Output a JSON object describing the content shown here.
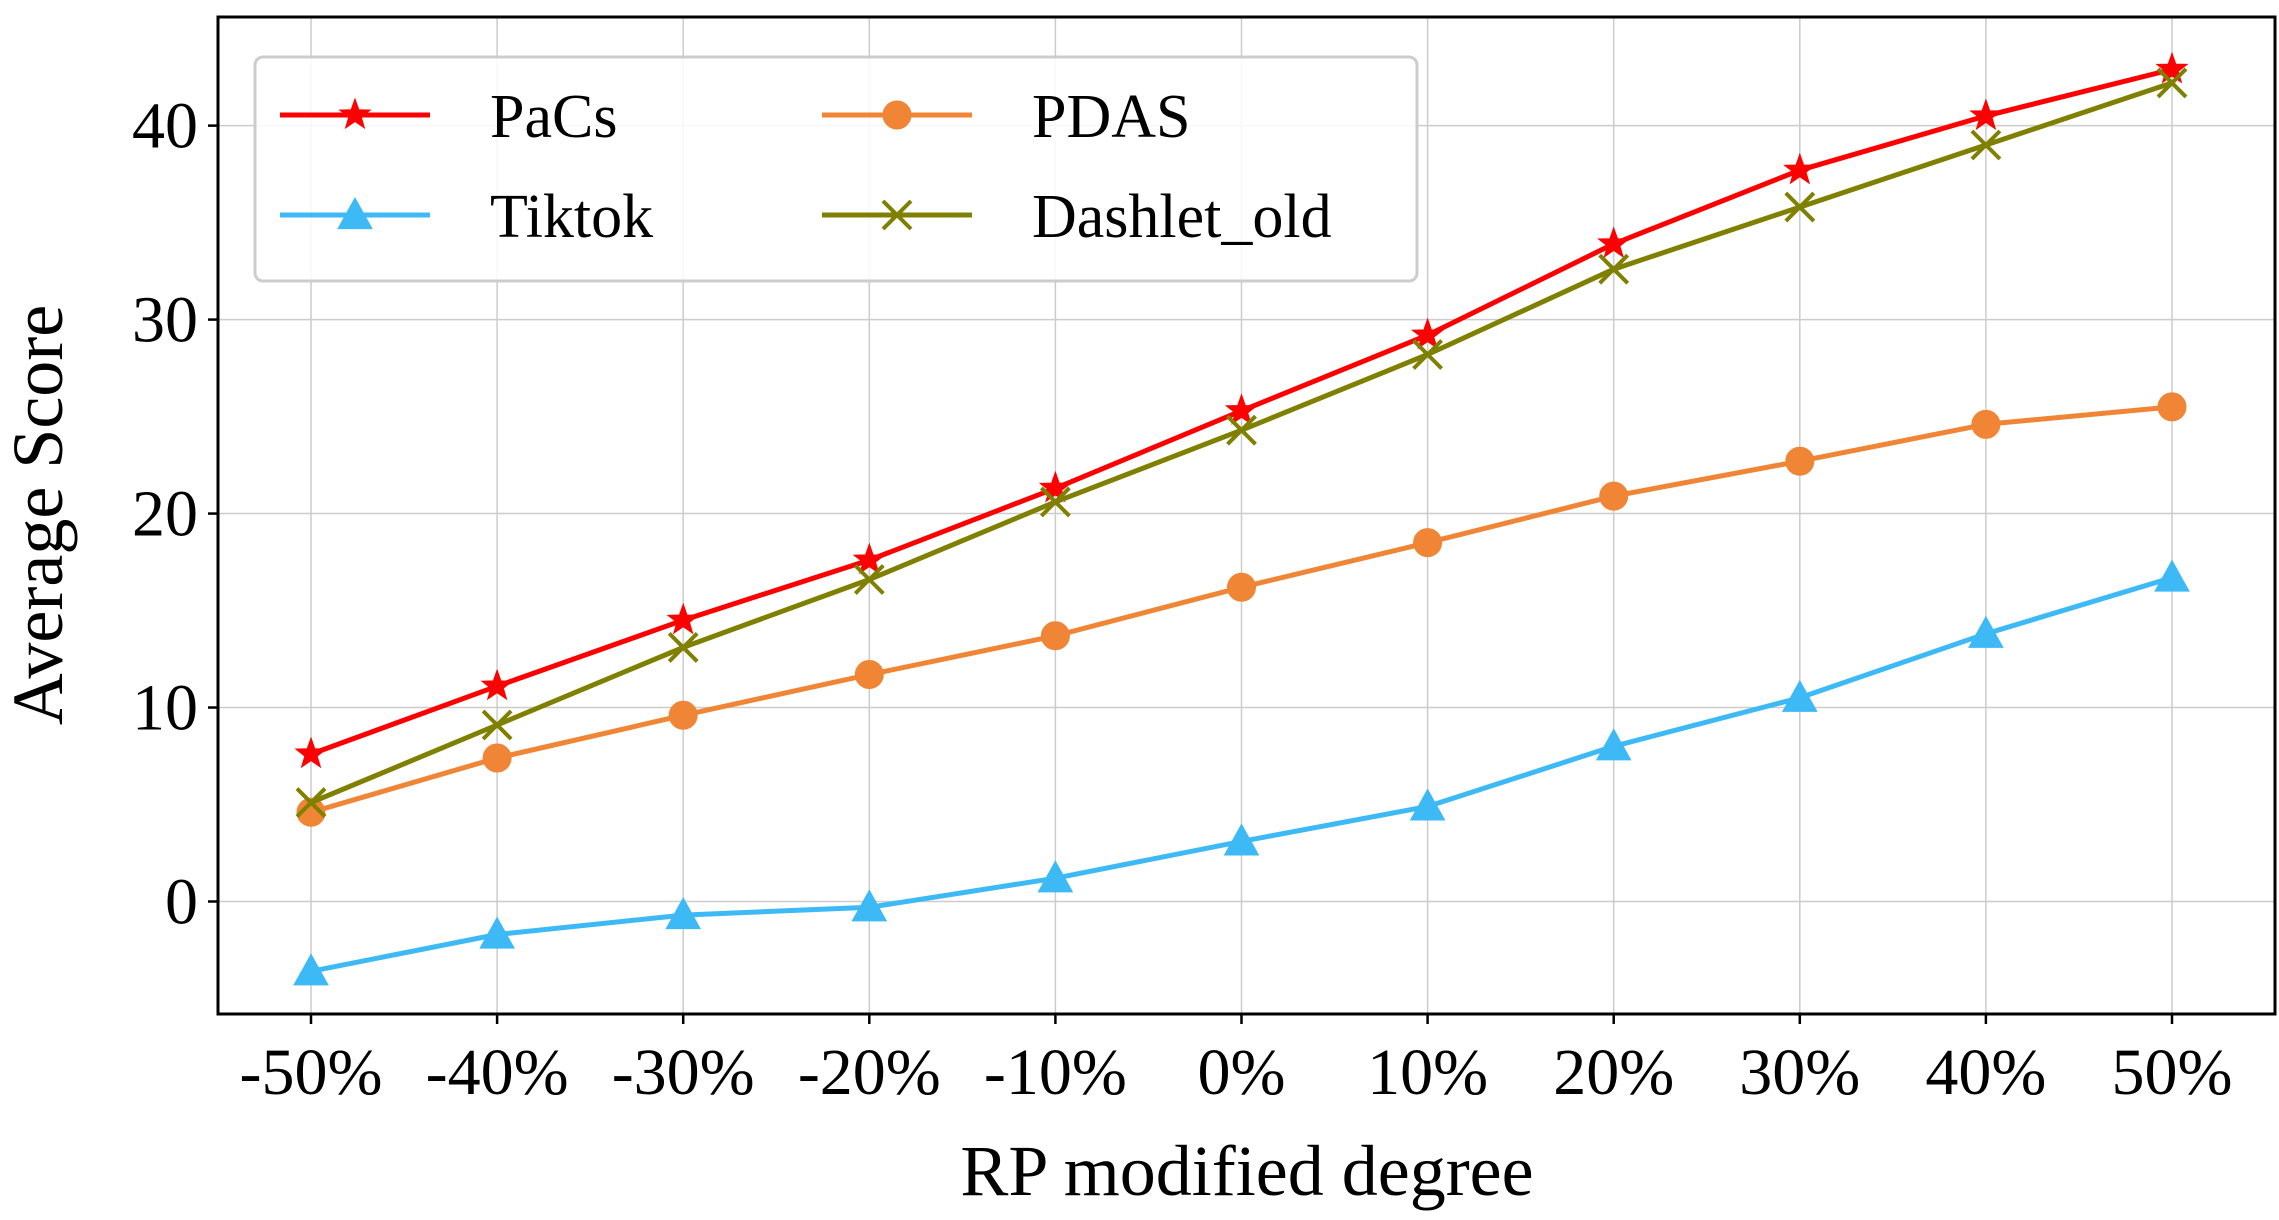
{
  "chart_data": {
    "type": "line",
    "title": "",
    "xlabel": "RP modified degree",
    "ylabel": "Average Score",
    "categories": [
      "-50%",
      "-40%",
      "-30%",
      "-20%",
      "-10%",
      "0%",
      "10%",
      "20%",
      "30%",
      "40%",
      "50%"
    ],
    "ylim": [
      -5.8,
      45.6
    ],
    "yticks": [
      0,
      10,
      20,
      30,
      40
    ],
    "grid": true,
    "legend_location": "top-left",
    "series": [
      {
        "name": "PaCs",
        "color": "#ff0000",
        "marker": "star",
        "values": [
          7.6,
          11.1,
          14.5,
          17.6,
          21.3,
          25.3,
          29.2,
          33.9,
          37.7,
          40.5,
          42.9
        ]
      },
      {
        "name": "Tiktok",
        "color": "#3dbaf5",
        "marker": "triangle",
        "values": [
          -3.6,
          -1.7,
          -0.7,
          -0.3,
          1.2,
          3.1,
          4.9,
          8.0,
          10.5,
          13.8,
          16.7
        ]
      },
      {
        "name": "PDAS",
        "color": "#ef8535",
        "marker": "circle",
        "values": [
          4.6,
          7.4,
          9.6,
          11.7,
          13.7,
          16.2,
          18.5,
          20.9,
          22.7,
          24.6,
          25.5
        ]
      },
      {
        "name": "Dashlet_old",
        "color": "#808000",
        "marker": "x",
        "values": [
          5.1,
          9.1,
          13.1,
          16.6,
          20.6,
          24.3,
          28.2,
          32.6,
          35.8,
          39.0,
          42.2
        ]
      }
    ]
  }
}
